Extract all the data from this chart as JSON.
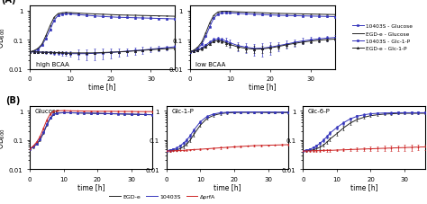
{
  "time_A": [
    0,
    1,
    2,
    3,
    4,
    5,
    6,
    7,
    8,
    9,
    10,
    12,
    14,
    16,
    18,
    20,
    22,
    24,
    26,
    28,
    30,
    32,
    34,
    36
  ],
  "A1_10403S_Glc": [
    0.038,
    0.04,
    0.045,
    0.065,
    0.11,
    0.22,
    0.45,
    0.68,
    0.75,
    0.78,
    0.76,
    0.72,
    0.68,
    0.65,
    0.62,
    0.6,
    0.58,
    0.57,
    0.56,
    0.55,
    0.54,
    0.53,
    0.52,
    0.51
  ],
  "A1_10403S_Glc_err": [
    0.002,
    0.002,
    0.003,
    0.004,
    0.007,
    0.015,
    0.03,
    0.035,
    0.035,
    0.035,
    0.035,
    0.035,
    0.035,
    0.035,
    0.035,
    0.035,
    0.035,
    0.035,
    0.035,
    0.035,
    0.035,
    0.035,
    0.035,
    0.035
  ],
  "A1_EGD_Glc": [
    0.038,
    0.042,
    0.05,
    0.07,
    0.14,
    0.3,
    0.58,
    0.78,
    0.83,
    0.85,
    0.84,
    0.81,
    0.78,
    0.76,
    0.74,
    0.72,
    0.7,
    0.69,
    0.68,
    0.67,
    0.66,
    0.65,
    0.64,
    0.63
  ],
  "A1_EGD_Glc_err": [
    0.001,
    0.002,
    0.003,
    0.004,
    0.006,
    0.01,
    0.02,
    0.025,
    0.025,
    0.025,
    0.025,
    0.025,
    0.025,
    0.025,
    0.025,
    0.025,
    0.025,
    0.025,
    0.025,
    0.025,
    0.025,
    0.025,
    0.025,
    0.025
  ],
  "A1_10403S_G1P": [
    0.038,
    0.038,
    0.037,
    0.037,
    0.036,
    0.036,
    0.035,
    0.035,
    0.034,
    0.034,
    0.033,
    0.033,
    0.033,
    0.034,
    0.035,
    0.036,
    0.038,
    0.04,
    0.042,
    0.044,
    0.047,
    0.05,
    0.053,
    0.057
  ],
  "A1_10403S_G1P_err": [
    0.003,
    0.003,
    0.003,
    0.003,
    0.003,
    0.004,
    0.004,
    0.005,
    0.005,
    0.005,
    0.006,
    0.012,
    0.014,
    0.014,
    0.014,
    0.013,
    0.012,
    0.011,
    0.011,
    0.011,
    0.01,
    0.01,
    0.01,
    0.01
  ],
  "A1_EGD_G1P": [
    0.038,
    0.038,
    0.038,
    0.037,
    0.037,
    0.037,
    0.036,
    0.036,
    0.036,
    0.035,
    0.035,
    0.035,
    0.035,
    0.035,
    0.036,
    0.037,
    0.038,
    0.039,
    0.041,
    0.043,
    0.045,
    0.047,
    0.049,
    0.051
  ],
  "A1_EGD_G1P_err": [
    0.002,
    0.002,
    0.002,
    0.002,
    0.002,
    0.002,
    0.002,
    0.002,
    0.002,
    0.002,
    0.002,
    0.002,
    0.002,
    0.002,
    0.002,
    0.002,
    0.002,
    0.002,
    0.002,
    0.002,
    0.002,
    0.002,
    0.002,
    0.002
  ],
  "A2_10403S_Glc": [
    0.038,
    0.04,
    0.048,
    0.07,
    0.13,
    0.28,
    0.55,
    0.75,
    0.82,
    0.84,
    0.82,
    0.79,
    0.76,
    0.74,
    0.72,
    0.7,
    0.68,
    0.67,
    0.66,
    0.65,
    0.64,
    0.63,
    0.62,
    0.61
  ],
  "A2_10403S_Glc_err": [
    0.002,
    0.002,
    0.003,
    0.005,
    0.008,
    0.016,
    0.03,
    0.035,
    0.035,
    0.035,
    0.035,
    0.035,
    0.035,
    0.035,
    0.035,
    0.035,
    0.035,
    0.035,
    0.035,
    0.035,
    0.035,
    0.035,
    0.035,
    0.035
  ],
  "A2_EGD_Glc": [
    0.038,
    0.043,
    0.055,
    0.082,
    0.17,
    0.38,
    0.68,
    0.88,
    0.93,
    0.94,
    0.92,
    0.89,
    0.87,
    0.85,
    0.83,
    0.81,
    0.79,
    0.78,
    0.77,
    0.76,
    0.75,
    0.74,
    0.73,
    0.72
  ],
  "A2_EGD_Glc_err": [
    0.001,
    0.002,
    0.003,
    0.004,
    0.007,
    0.012,
    0.022,
    0.025,
    0.025,
    0.025,
    0.025,
    0.025,
    0.025,
    0.025,
    0.025,
    0.025,
    0.025,
    0.025,
    0.025,
    0.025,
    0.025,
    0.025,
    0.025,
    0.025
  ],
  "A2_10403S_G1P": [
    0.04,
    0.041,
    0.044,
    0.052,
    0.065,
    0.082,
    0.1,
    0.105,
    0.1,
    0.09,
    0.078,
    0.062,
    0.055,
    0.05,
    0.051,
    0.055,
    0.062,
    0.07,
    0.08,
    0.09,
    0.098,
    0.106,
    0.112,
    0.118
  ],
  "A2_10403S_G1P_err": [
    0.003,
    0.003,
    0.004,
    0.005,
    0.007,
    0.009,
    0.012,
    0.015,
    0.018,
    0.022,
    0.022,
    0.022,
    0.02,
    0.022,
    0.025,
    0.025,
    0.022,
    0.022,
    0.022,
    0.022,
    0.022,
    0.022,
    0.022,
    0.022
  ],
  "A2_EGD_G1P": [
    0.04,
    0.041,
    0.043,
    0.048,
    0.058,
    0.072,
    0.088,
    0.092,
    0.088,
    0.078,
    0.068,
    0.056,
    0.05,
    0.047,
    0.048,
    0.052,
    0.058,
    0.066,
    0.074,
    0.082,
    0.089,
    0.095,
    0.1,
    0.104
  ],
  "A2_EGD_G1P_err": [
    0.003,
    0.003,
    0.003,
    0.004,
    0.005,
    0.007,
    0.009,
    0.011,
    0.013,
    0.015,
    0.015,
    0.014,
    0.012,
    0.012,
    0.013,
    0.014,
    0.012,
    0.012,
    0.012,
    0.012,
    0.012,
    0.012,
    0.012,
    0.012
  ],
  "time_B": [
    0,
    1,
    2,
    3,
    4,
    5,
    6,
    7,
    8,
    10,
    12,
    14,
    16,
    18,
    20,
    22,
    24,
    26,
    28,
    30,
    32,
    34,
    36
  ],
  "B1_EGD_Glc": [
    0.05,
    0.057,
    0.072,
    0.1,
    0.17,
    0.32,
    0.55,
    0.73,
    0.82,
    0.86,
    0.85,
    0.84,
    0.83,
    0.82,
    0.81,
    0.8,
    0.79,
    0.78,
    0.77,
    0.76,
    0.75,
    0.74,
    0.73
  ],
  "B1_EGD_Glc_err": [
    0.003,
    0.004,
    0.005,
    0.007,
    0.012,
    0.02,
    0.03,
    0.035,
    0.035,
    0.035,
    0.035,
    0.035,
    0.035,
    0.035,
    0.035,
    0.035,
    0.035,
    0.035,
    0.035,
    0.035,
    0.035,
    0.035,
    0.035
  ],
  "B1_10403S_Glc": [
    0.05,
    0.058,
    0.075,
    0.105,
    0.18,
    0.34,
    0.58,
    0.76,
    0.84,
    0.87,
    0.86,
    0.85,
    0.84,
    0.83,
    0.82,
    0.81,
    0.8,
    0.79,
    0.78,
    0.77,
    0.76,
    0.75,
    0.74
  ],
  "B1_10403S_Glc_err": [
    0.003,
    0.004,
    0.005,
    0.007,
    0.012,
    0.02,
    0.03,
    0.035,
    0.035,
    0.035,
    0.035,
    0.035,
    0.035,
    0.035,
    0.035,
    0.035,
    0.035,
    0.035,
    0.035,
    0.035,
    0.035,
    0.035,
    0.035
  ],
  "B1_prfA_Glc": [
    0.05,
    0.062,
    0.085,
    0.13,
    0.25,
    0.48,
    0.78,
    0.95,
    1.0,
    1.02,
    1.0,
    0.99,
    0.98,
    0.97,
    0.96,
    0.96,
    0.96,
    0.95,
    0.95,
    0.95,
    0.94,
    0.94,
    0.94
  ],
  "B1_prfA_Glc_err": [
    0.003,
    0.004,
    0.006,
    0.01,
    0.018,
    0.03,
    0.04,
    0.045,
    0.045,
    0.04,
    0.04,
    0.04,
    0.04,
    0.04,
    0.04,
    0.04,
    0.04,
    0.04,
    0.04,
    0.04,
    0.04,
    0.04,
    0.04
  ],
  "B2_EGD_G1P": [
    0.042,
    0.043,
    0.044,
    0.046,
    0.05,
    0.058,
    0.072,
    0.098,
    0.15,
    0.32,
    0.55,
    0.7,
    0.8,
    0.85,
    0.87,
    0.88,
    0.88,
    0.88,
    0.88,
    0.87,
    0.87,
    0.87,
    0.86
  ],
  "B2_EGD_G1P_err": [
    0.003,
    0.003,
    0.003,
    0.004,
    0.005,
    0.006,
    0.009,
    0.013,
    0.022,
    0.045,
    0.065,
    0.072,
    0.072,
    0.07,
    0.07,
    0.07,
    0.07,
    0.07,
    0.07,
    0.07,
    0.07,
    0.07,
    0.07
  ],
  "B2_10403S_G1P": [
    0.043,
    0.045,
    0.048,
    0.053,
    0.062,
    0.078,
    0.1,
    0.138,
    0.21,
    0.42,
    0.64,
    0.78,
    0.86,
    0.89,
    0.91,
    0.91,
    0.91,
    0.91,
    0.91,
    0.91,
    0.9,
    0.9,
    0.9
  ],
  "B2_10403S_G1P_err": [
    0.003,
    0.003,
    0.004,
    0.005,
    0.007,
    0.009,
    0.013,
    0.02,
    0.03,
    0.05,
    0.065,
    0.07,
    0.07,
    0.07,
    0.07,
    0.07,
    0.07,
    0.07,
    0.07,
    0.07,
    0.07,
    0.07,
    0.07
  ],
  "B2_prfA_G1P": [
    0.042,
    0.042,
    0.043,
    0.043,
    0.044,
    0.044,
    0.045,
    0.046,
    0.047,
    0.048,
    0.05,
    0.052,
    0.054,
    0.056,
    0.058,
    0.06,
    0.062,
    0.064,
    0.065,
    0.066,
    0.067,
    0.068,
    0.069
  ],
  "B2_prfA_G1P_err": [
    0.002,
    0.002,
    0.002,
    0.002,
    0.002,
    0.002,
    0.002,
    0.002,
    0.003,
    0.003,
    0.003,
    0.003,
    0.004,
    0.004,
    0.004,
    0.004,
    0.004,
    0.004,
    0.004,
    0.004,
    0.004,
    0.004,
    0.004
  ],
  "B3_EGD_G6P": [
    0.042,
    0.043,
    0.044,
    0.046,
    0.05,
    0.056,
    0.066,
    0.083,
    0.108,
    0.165,
    0.26,
    0.38,
    0.5,
    0.6,
    0.68,
    0.73,
    0.77,
    0.79,
    0.81,
    0.82,
    0.82,
    0.82,
    0.82
  ],
  "B3_EGD_G6P_err": [
    0.003,
    0.003,
    0.003,
    0.004,
    0.005,
    0.006,
    0.008,
    0.011,
    0.016,
    0.025,
    0.04,
    0.055,
    0.065,
    0.065,
    0.065,
    0.065,
    0.065,
    0.065,
    0.065,
    0.065,
    0.065,
    0.065,
    0.065
  ],
  "B3_10403S_G6P": [
    0.043,
    0.045,
    0.048,
    0.054,
    0.063,
    0.077,
    0.097,
    0.128,
    0.172,
    0.268,
    0.39,
    0.53,
    0.65,
    0.73,
    0.79,
    0.82,
    0.84,
    0.85,
    0.86,
    0.86,
    0.86,
    0.86,
    0.86
  ],
  "B3_10403S_G6P_err": [
    0.003,
    0.003,
    0.004,
    0.005,
    0.007,
    0.01,
    0.013,
    0.018,
    0.025,
    0.038,
    0.055,
    0.065,
    0.068,
    0.068,
    0.068,
    0.068,
    0.068,
    0.068,
    0.068,
    0.068,
    0.068,
    0.068,
    0.068
  ],
  "B3_prfA_G6P": [
    0.042,
    0.042,
    0.042,
    0.043,
    0.043,
    0.043,
    0.044,
    0.044,
    0.044,
    0.045,
    0.046,
    0.047,
    0.048,
    0.049,
    0.05,
    0.051,
    0.052,
    0.053,
    0.054,
    0.055,
    0.056,
    0.057,
    0.058
  ],
  "B3_prfA_G6P_err": [
    0.003,
    0.003,
    0.003,
    0.003,
    0.003,
    0.003,
    0.003,
    0.004,
    0.004,
    0.004,
    0.005,
    0.006,
    0.007,
    0.008,
    0.009,
    0.01,
    0.01,
    0.011,
    0.012,
    0.013,
    0.013,
    0.013,
    0.013
  ],
  "color_blue": "#3333bb",
  "color_black": "#222222",
  "color_red": "#cc2222",
  "ylim": [
    0.01,
    1.5
  ],
  "yticks_log": [
    0.01,
    0.1,
    1
  ],
  "ytick_labels": [
    "0.01",
    "0.1",
    "1"
  ],
  "xlim": [
    0,
    36
  ],
  "xticks": [
    0,
    10,
    20,
    30
  ],
  "xlabel": "time [h]",
  "ylabel_A": "OD$_{600}$",
  "ylabel_B": "OD$_{600}$",
  "label_A": "(A)",
  "label_B": "(B)",
  "label_highBCAA": "high BCAA",
  "label_lowBCAA": "low BCAA",
  "label_Glucose_B": "Glucose",
  "label_G1P_B": "Glc-1-P",
  "label_G6P_B": "Glc-6-P",
  "legend_A": [
    "10403S - Glucose",
    "EGD-e - Glucose",
    "10403S - Glc-1-P",
    "EGD-e - Glc-1-P"
  ],
  "legend_B": [
    "EGD-e",
    "10403S",
    "ΔprfA"
  ]
}
